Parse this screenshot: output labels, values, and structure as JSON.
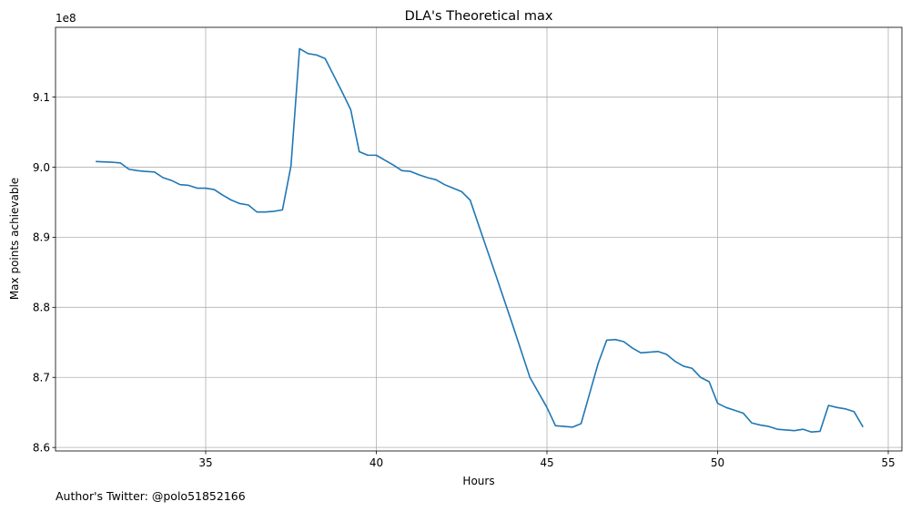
{
  "chart_data": {
    "type": "line",
    "title": "DLA's Theoretical max",
    "xlabel": "Hours",
    "ylabel": "Max points achievable",
    "y_offset_label": "1e8",
    "y_scale": 100000000,
    "xlim": [
      30.6,
      55.4
    ],
    "ylim": [
      8.595,
      9.1995
    ],
    "xticks": [
      35,
      40,
      45,
      50,
      55
    ],
    "xtick_labels": [
      "35",
      "40",
      "45",
      "50",
      "55"
    ],
    "yticks": [
      8.6,
      8.7,
      8.8,
      8.9,
      9.0,
      9.1
    ],
    "ytick_labels": [
      "8.6",
      "8.7",
      "8.8",
      "8.9",
      "9.0",
      "9.1"
    ],
    "grid": true,
    "line_color": "#1f77b4",
    "series": [
      {
        "x": [
          31.8,
          32.25,
          32.5,
          32.75,
          33.0,
          33.2,
          33.5,
          33.75,
          34.0,
          34.25,
          34.5,
          34.75,
          35.0,
          35.25,
          35.5,
          35.75,
          36.0,
          36.25,
          36.5,
          36.75,
          37.0,
          37.25,
          37.5,
          37.75,
          38.0,
          38.25,
          38.5,
          38.75,
          39.0,
          39.25,
          39.5,
          39.75,
          40.0,
          40.25,
          40.5,
          40.75,
          41.0,
          41.25,
          41.5,
          41.75,
          42.0,
          42.25,
          42.5,
          42.75,
          43.0,
          43.5,
          44.0,
          44.5,
          45.0,
          45.25,
          45.75,
          46.0,
          46.25,
          46.5,
          46.75,
          47.0,
          47.25,
          47.5,
          47.75,
          48.0,
          48.25,
          48.5,
          48.75,
          49.0,
          49.25,
          49.5,
          49.75,
          50.0,
          50.25,
          50.5,
          50.75,
          51.0,
          51.25,
          51.5,
          51.75,
          52.0,
          52.25,
          52.5,
          52.75,
          53.0,
          53.25,
          53.5,
          53.75,
          54.0,
          54.25
        ],
        "y": [
          9.008,
          9.007,
          9.006,
          8.997,
          8.995,
          8.994,
          8.993,
          8.985,
          8.981,
          8.975,
          8.974,
          8.97,
          8.97,
          8.968,
          8.96,
          8.953,
          8.948,
          8.946,
          8.936,
          8.936,
          8.937,
          8.939,
          9.002,
          9.169,
          9.162,
          9.16,
          9.155,
          9.131,
          9.107,
          9.082,
          9.022,
          9.017,
          9.017,
          9.01,
          9.003,
          8.995,
          8.994,
          8.989,
          8.985,
          8.982,
          8.975,
          8.97,
          8.965,
          8.953,
          8.917,
          8.846,
          8.774,
          8.7,
          8.657,
          8.631,
          8.629,
          8.634,
          8.677,
          8.72,
          8.753,
          8.754,
          8.751,
          8.742,
          8.735,
          8.736,
          8.737,
          8.733,
          8.723,
          8.716,
          8.713,
          8.7,
          8.694,
          8.663,
          8.657,
          8.653,
          8.649,
          8.635,
          8.632,
          8.63,
          8.626,
          8.625,
          8.624,
          8.626,
          8.622,
          8.623,
          8.66,
          8.657,
          8.655,
          8.651,
          8.63
        ]
      }
    ]
  },
  "footer": {
    "text": "Author's Twitter: @polo51852166"
  }
}
